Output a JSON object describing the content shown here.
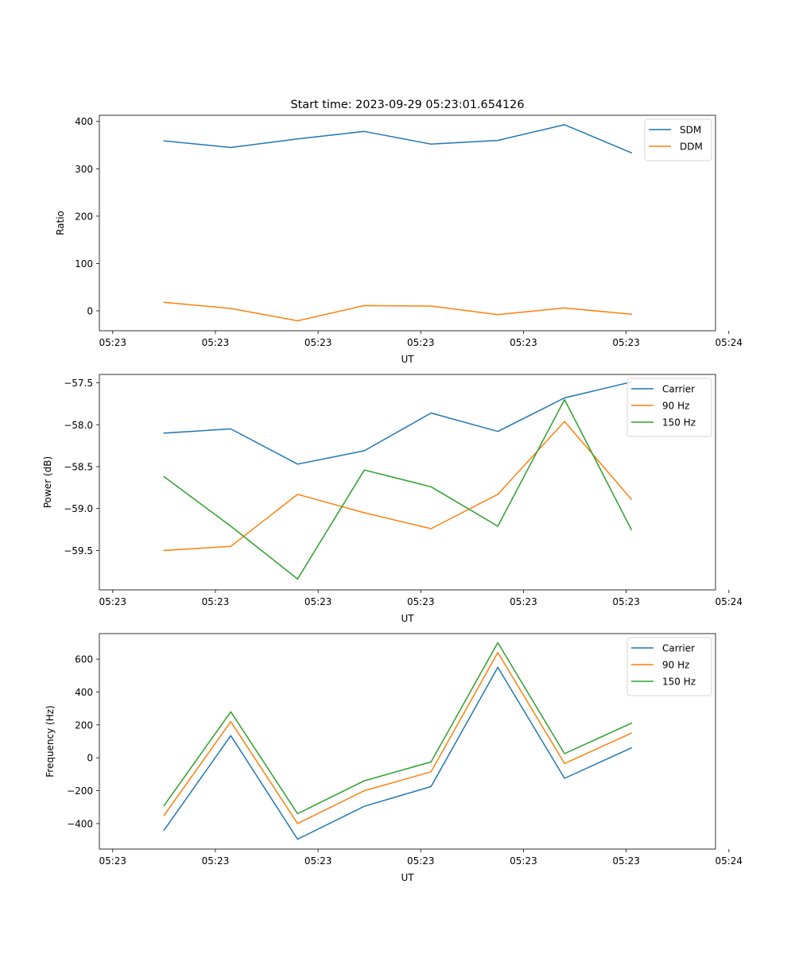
{
  "figure": {
    "title": "Start time: 2023-09-29 05:23:01.654126"
  },
  "colors": {
    "blue": "#1f77b4",
    "orange": "#ff7f0e",
    "green": "#2ca02c"
  },
  "chart_data": [
    {
      "type": "line",
      "xlabel": "UT",
      "ylabel": "Ratio",
      "legend_position": "top-right",
      "x_ticks": [
        "05:23",
        "05:23",
        "05:23",
        "05:23",
        "05:23",
        "05:23",
        "05:24"
      ],
      "x_range": [
        -0.13,
        5.87
      ],
      "ylim": [
        -42,
        413
      ],
      "y_ticks": [
        0,
        100,
        200,
        300,
        400
      ],
      "y_tick_labels": [
        "0",
        "100",
        "200",
        "300",
        "400"
      ],
      "x": [
        0.5,
        1.15,
        1.8,
        2.45,
        3.1,
        3.75,
        4.4,
        5.05
      ],
      "series": [
        {
          "name": "SDM",
          "color": "blue",
          "values": [
            359,
            345,
            363,
            379,
            352,
            360,
            393,
            334
          ]
        },
        {
          "name": "DDM",
          "color": "orange",
          "values": [
            18,
            5,
            -21,
            11,
            10,
            -8,
            6,
            -7
          ]
        }
      ]
    },
    {
      "type": "line",
      "xlabel": "UT",
      "ylabel": "Power (dB)",
      "legend_position": "top-right",
      "x_ticks": [
        "05:23",
        "05:23",
        "05:23",
        "05:23",
        "05:23",
        "05:23",
        "05:24"
      ],
      "x_range": [
        -0.13,
        5.87
      ],
      "ylim": [
        -59.97,
        -57.4
      ],
      "y_ticks": [
        -59.5,
        -59.0,
        -58.5,
        -58.0,
        -57.5
      ],
      "y_tick_labels": [
        "−59.5",
        "−59.0",
        "−58.5",
        "−58.0",
        "−57.5"
      ],
      "x": [
        0.5,
        1.15,
        1.8,
        2.45,
        3.1,
        3.75,
        4.4,
        5.05
      ],
      "series": [
        {
          "name": "Carrier",
          "color": "blue",
          "values": [
            -58.1,
            -58.05,
            -58.47,
            -58.31,
            -57.86,
            -58.08,
            -57.68,
            -57.49
          ]
        },
        {
          "name": "90 Hz",
          "color": "orange",
          "values": [
            -59.5,
            -59.45,
            -58.83,
            -59.05,
            -59.24,
            -58.83,
            -57.96,
            -58.89
          ]
        },
        {
          "name": "150 Hz",
          "color": "green",
          "values": [
            -58.62,
            -59.21,
            -59.84,
            -58.54,
            -58.74,
            -59.21,
            -57.7,
            -59.25
          ]
        }
      ]
    },
    {
      "type": "line",
      "xlabel": "UT",
      "ylabel": "Frequency (Hz)",
      "legend_position": "top-right",
      "x_ticks": [
        "05:23",
        "05:23",
        "05:23",
        "05:23",
        "05:23",
        "05:23",
        "05:24"
      ],
      "x_range": [
        -0.13,
        5.87
      ],
      "ylim": [
        -555,
        755
      ],
      "y_ticks": [
        -400,
        -200,
        0,
        200,
        400,
        600
      ],
      "y_tick_labels": [
        "−400",
        "−200",
        "0",
        "200",
        "400",
        "600"
      ],
      "x": [
        0.5,
        1.15,
        1.8,
        2.45,
        3.1,
        3.75,
        4.4,
        5.05
      ],
      "series": [
        {
          "name": "Carrier",
          "color": "blue",
          "values": [
            -440,
            135,
            -495,
            -295,
            -175,
            550,
            -125,
            60
          ]
        },
        {
          "name": "90 Hz",
          "color": "orange",
          "values": [
            -350,
            220,
            -400,
            -200,
            -85,
            640,
            -35,
            150
          ]
        },
        {
          "name": "150 Hz",
          "color": "green",
          "values": [
            -290,
            280,
            -340,
            -140,
            -25,
            700,
            25,
            210
          ]
        }
      ]
    }
  ]
}
